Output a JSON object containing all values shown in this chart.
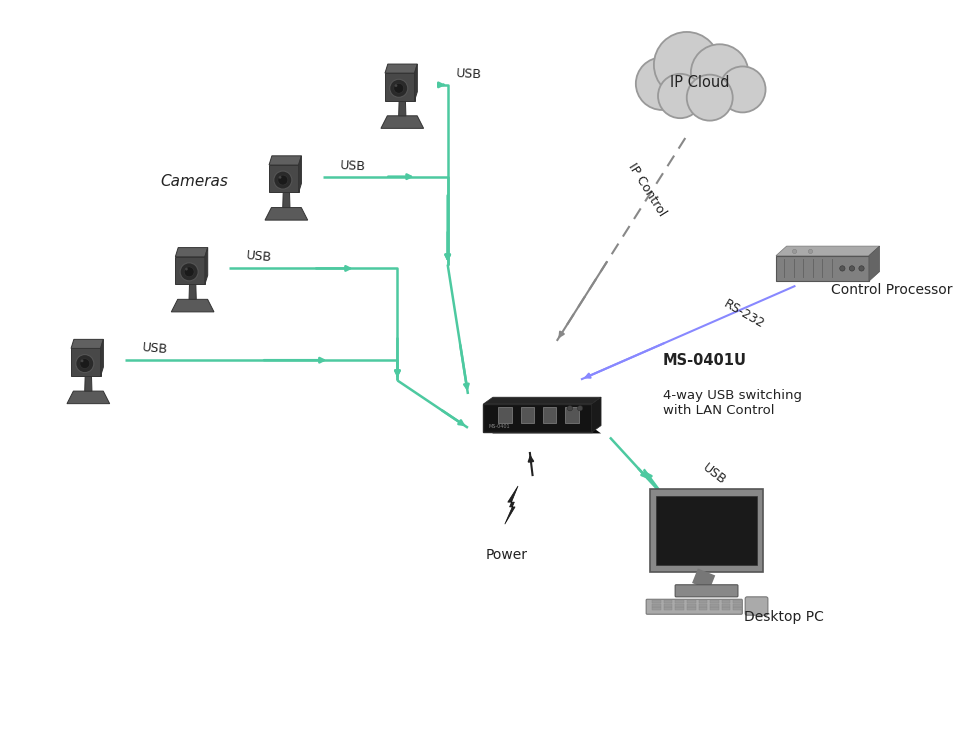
{
  "bg_color": "#ffffff",
  "usb_color": "#4dc9a0",
  "rs232_color": "#8888ff",
  "dashed_color": "#888888",
  "pwr_color": "#222222",
  "txt_color": "#222222",
  "cameras_label": "Cameras",
  "switch_bold": "MS-0401U",
  "switch_normal": "4-way USB switching\nwith LAN Control",
  "cloud_label": "IP Cloud",
  "cp_label": "Control Processor",
  "pc_label": "Desktop PC",
  "pwr_label": "Power",
  "ip_ctrl_label": "IP Control",
  "rs232_label": "RS-232",
  "cam_color_dark": "#3a3a3a",
  "cam_color_mid": "#555555",
  "cam_color_light": "#707070",
  "cam_color_base": "#666666",
  "switch_color": "#111111",
  "cloud_color": "#cccccc",
  "cloud_edge": "#999999",
  "cp_color": "#888888",
  "pc_color": "#888888"
}
